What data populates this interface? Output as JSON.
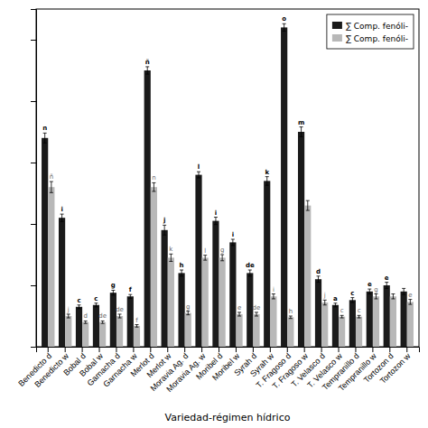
{
  "chart_data": {
    "type": "bar",
    "xlabel": "Variedad-régimen hídrico",
    "categories": [
      "Benedicto d",
      "Benedicto w",
      "Bobal d",
      "Bobal w",
      "Garnacha d",
      "Garnacha w",
      "Merlot d",
      "Merlot w",
      "Moravia Ag. d",
      "Moravia Ag. w",
      "Moribel d",
      "Moribel w",
      "Syrah d",
      "Syrah w",
      "T. Fragoso d",
      "T. Fragoso w",
      "T. Velasco d",
      "T. Velasco w",
      "Tempranillo d",
      "Tempranillo w",
      "Tortozon d",
      "Tortozon w"
    ],
    "series": [
      {
        "name": "∑ Comp. fenóli-",
        "color": "#1a1a1a",
        "values": [
          3400,
          2100,
          650,
          680,
          880,
          820,
          4500,
          1900,
          1200,
          2800,
          2050,
          1700,
          1200,
          2700,
          5200,
          3500,
          1100,
          680,
          760,
          900,
          1000,
          900
        ],
        "errors": [
          80,
          60,
          30,
          30,
          40,
          30,
          60,
          80,
          50,
          50,
          60,
          50,
          50,
          70,
          60,
          80,
          50,
          30,
          40,
          40,
          50,
          50
        ],
        "annotations": [
          "n",
          "i",
          "c",
          "c",
          "g",
          "f",
          "ñ",
          "j",
          "h",
          "l",
          "i",
          "i",
          "de",
          "k",
          "o",
          "m",
          "d",
          "a",
          "c",
          "e",
          "e",
          null
        ]
      },
      {
        "name": "∑ Comp. fenóli-",
        "color": "#b8b8b8",
        "values": [
          2600,
          500,
          400,
          400,
          500,
          340,
          2600,
          1450,
          550,
          1450,
          1450,
          530,
          530,
          820,
          480,
          2300,
          720,
          490,
          490,
          820,
          820,
          730
        ],
        "errors": [
          90,
          30,
          20,
          20,
          30,
          20,
          70,
          60,
          30,
          40,
          50,
          30,
          30,
          40,
          20,
          80,
          40,
          20,
          20,
          40,
          40,
          40
        ],
        "annotations": [
          "ñ",
          "j",
          "d",
          "de",
          "de",
          "f",
          "n",
          "k",
          "g",
          "l",
          "g",
          "e",
          "de",
          "i",
          "h",
          null,
          "j",
          "c",
          "c",
          "g",
          null,
          "e"
        ]
      }
    ],
    "ylim": [
      0,
      5500
    ],
    "yticks": [
      0,
      1000,
      2000,
      3000,
      4000,
      5000
    ],
    "tick_labels": "x",
    "legend": "upper right"
  }
}
